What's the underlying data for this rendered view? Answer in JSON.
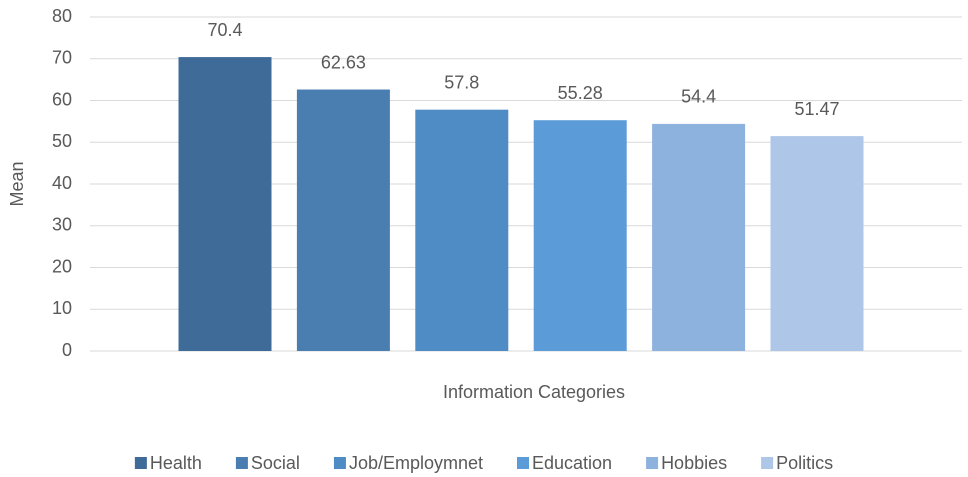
{
  "chart_data": {
    "type": "bar",
    "x_label": "Information Categories",
    "y_label": "Mean",
    "categories": [
      null
    ],
    "series": [
      {
        "name": "Health",
        "color": "#3f6b98",
        "values": [
          70.4
        ]
      },
      {
        "name": "Social",
        "color": "#4a7eb1",
        "values": [
          62.63
        ]
      },
      {
        "name": "Job/Employmnet",
        "color": "#4f8cc5",
        "values": [
          57.8
        ]
      },
      {
        "name": "Education",
        "color": "#5b9bd8",
        "values": [
          55.28
        ]
      },
      {
        "name": "Hobbies",
        "color": "#8db2de",
        "values": [
          54.4
        ]
      },
      {
        "name": "Politics",
        "color": "#aec7e8",
        "values": [
          51.47
        ]
      }
    ],
    "ylim": [
      0,
      80
    ],
    "yticks": [
      0,
      10,
      20,
      30,
      40,
      50,
      60,
      70,
      80
    ],
    "grid": true,
    "legend": "bottom"
  }
}
